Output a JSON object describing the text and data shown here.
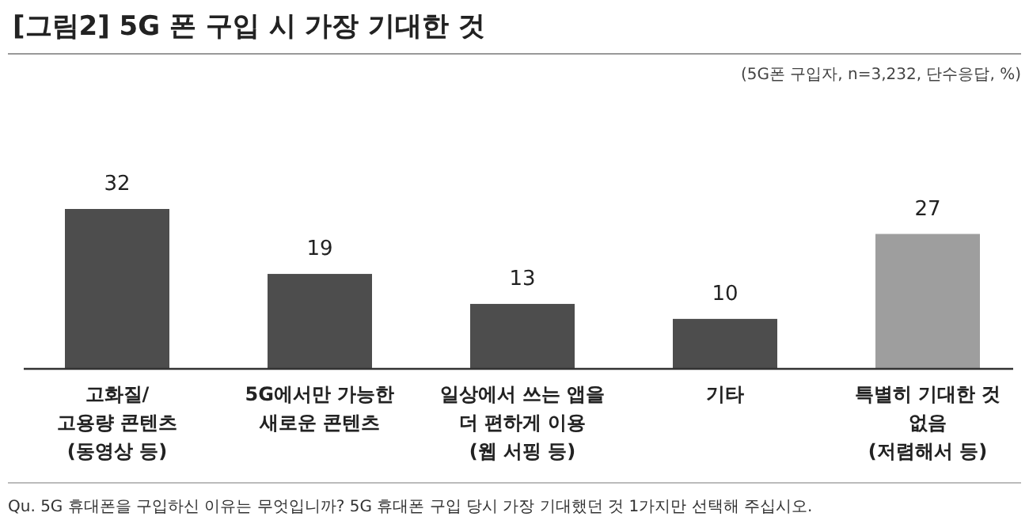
{
  "chart_data": {
    "type": "bar",
    "title": "[그림2] 5G 폰 구입 시 가장 기대한 것",
    "subtitle": "(5G폰 구입자, n=3,232, 단수응답, %)",
    "categories": [
      "고화질/\n고용량 콘텐츠\n(동영상 등)",
      "5G에서만 가능한\n새로운 콘텐츠",
      "일상에서 쓰는 앱을\n더 편하게 이용\n(웹 서핑 등)",
      "기타",
      "특별히 기대한 것\n없음\n(저렴해서 등)"
    ],
    "values": [
      32,
      19,
      13,
      10,
      27
    ],
    "colors": [
      "#4d4d4d",
      "#4d4d4d",
      "#4d4d4d",
      "#4d4d4d",
      "#9e9e9e"
    ],
    "data_labels": true,
    "annotations": [
      "Qu. 5G 휴대폰을 구입하신 이유는 무엇입니까? 5G 휴대폰 구입 당시 가장 기대했던 것 1가지만 선택해 주십시오."
    ]
  }
}
